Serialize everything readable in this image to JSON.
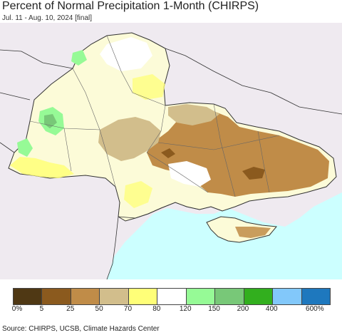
{
  "title": "Percent of Normal Precipitation 1-Month (CHIRPS)",
  "subtitle": "Jul. 11 - Aug. 10, 2024 [final]",
  "source": "Source: CHIRPS, UCSB, Climate Hazards Center",
  "colors": {
    "sea": "#ccffff",
    "outside": "#efeaf0",
    "border": "#333333"
  },
  "legend": {
    "colors": [
      "#4f3814",
      "#8b5a1e",
      "#c08c48",
      "#d2be8c",
      "#ffff78",
      "#ffffff",
      "#96fa96",
      "#78c878",
      "#32af1e",
      "#82c8fa",
      "#1e78be"
    ],
    "ticks": [
      "0%",
      "5",
      "25",
      "50",
      "70",
      "80",
      "120",
      "150",
      "200",
      "400",
      "600%"
    ]
  }
}
